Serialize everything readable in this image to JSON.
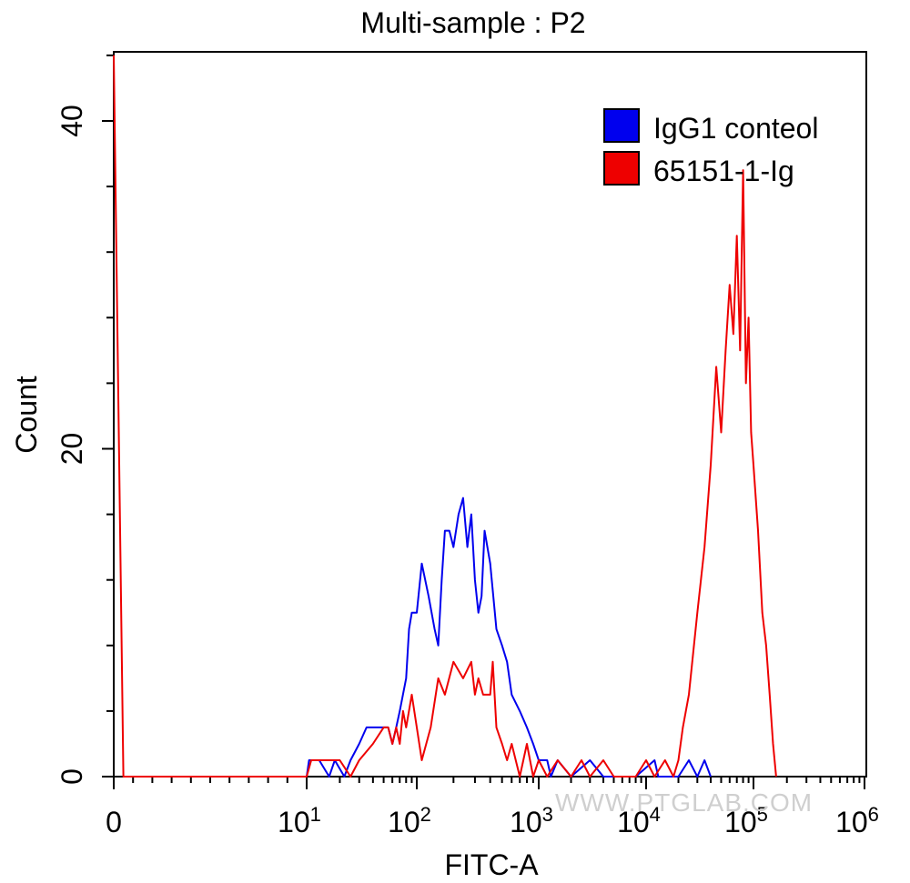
{
  "chart_data": {
    "type": "histogram",
    "title": "Multi-sample : P2",
    "xlabel": "FITC-A",
    "ylabel": "Count",
    "x_scale": "log",
    "x_tick_labels": [
      {
        "value": 0,
        "text": "0"
      },
      {
        "value": 10,
        "base": "10",
        "exp": "1"
      },
      {
        "value": 100,
        "base": "10",
        "exp": "2"
      },
      {
        "value": 1000,
        "base": "10",
        "exp": "3"
      },
      {
        "value": 10000,
        "base": "10",
        "exp": "4"
      },
      {
        "value": 100000,
        "base": "10",
        "exp": "5"
      },
      {
        "value": 1000000,
        "base": "10",
        "exp": "6"
      }
    ],
    "y_ticks": [
      0,
      20,
      40
    ],
    "ylim": [
      0,
      44
    ],
    "legend_position": "top-right",
    "watermark": "WWW.PTGLAB.COM",
    "series": [
      {
        "name": "IgG1 conteol",
        "color": "#0000ee",
        "points": [
          [
            10,
            0
          ],
          [
            10.5,
            1
          ],
          [
            13,
            1
          ],
          [
            16,
            0
          ],
          [
            18,
            1
          ],
          [
            22,
            0
          ],
          [
            25,
            1
          ],
          [
            30,
            2
          ],
          [
            35,
            3
          ],
          [
            45,
            3
          ],
          [
            55,
            3
          ],
          [
            60,
            2
          ],
          [
            65,
            3
          ],
          [
            70,
            4
          ],
          [
            80,
            6
          ],
          [
            85,
            9
          ],
          [
            90,
            10
          ],
          [
            100,
            10
          ],
          [
            110,
            13
          ],
          [
            125,
            11
          ],
          [
            140,
            9
          ],
          [
            150,
            8
          ],
          [
            160,
            12
          ],
          [
            170,
            15
          ],
          [
            185,
            15
          ],
          [
            200,
            14
          ],
          [
            220,
            16
          ],
          [
            240,
            17
          ],
          [
            260,
            14
          ],
          [
            280,
            16
          ],
          [
            300,
            12
          ],
          [
            320,
            10
          ],
          [
            340,
            11
          ],
          [
            360,
            15
          ],
          [
            400,
            13
          ],
          [
            450,
            9
          ],
          [
            500,
            8
          ],
          [
            550,
            7
          ],
          [
            600,
            5
          ],
          [
            700,
            4
          ],
          [
            800,
            3
          ],
          [
            900,
            2
          ],
          [
            1000,
            1
          ],
          [
            1200,
            1
          ],
          [
            1300,
            0
          ],
          [
            1500,
            1
          ],
          [
            2000,
            0
          ],
          [
            3000,
            1
          ],
          [
            4000,
            0
          ],
          [
            6000,
            0
          ],
          [
            8000,
            0
          ],
          [
            12000,
            1
          ],
          [
            13000,
            0
          ],
          [
            20000,
            0
          ],
          [
            25000,
            1
          ],
          [
            30000,
            0
          ],
          [
            35000,
            1
          ],
          [
            40000,
            0
          ]
        ]
      },
      {
        "name": "65151-1-Ig",
        "color": "#ee0000",
        "points": [
          [
            0,
            44
          ],
          [
            0.5,
            0
          ],
          [
            10,
            0
          ],
          [
            11,
            1
          ],
          [
            20,
            1
          ],
          [
            25,
            0
          ],
          [
            30,
            1
          ],
          [
            40,
            2
          ],
          [
            50,
            3
          ],
          [
            55,
            3
          ],
          [
            60,
            2
          ],
          [
            65,
            3
          ],
          [
            70,
            2
          ],
          [
            75,
            4
          ],
          [
            80,
            3
          ],
          [
            90,
            5
          ],
          [
            100,
            3
          ],
          [
            110,
            1
          ],
          [
            130,
            3
          ],
          [
            150,
            6
          ],
          [
            170,
            5
          ],
          [
            200,
            7
          ],
          [
            240,
            6
          ],
          [
            280,
            7
          ],
          [
            300,
            5
          ],
          [
            320,
            6
          ],
          [
            350,
            5
          ],
          [
            400,
            5
          ],
          [
            420,
            7
          ],
          [
            450,
            3
          ],
          [
            500,
            2
          ],
          [
            550,
            1
          ],
          [
            600,
            2
          ],
          [
            700,
            0
          ],
          [
            800,
            2
          ],
          [
            900,
            0
          ],
          [
            1000,
            1
          ],
          [
            1200,
            0
          ],
          [
            1500,
            1
          ],
          [
            2000,
            0
          ],
          [
            2500,
            1
          ],
          [
            3000,
            0
          ],
          [
            4000,
            1
          ],
          [
            5000,
            0
          ],
          [
            6000,
            0
          ],
          [
            8000,
            0
          ],
          [
            10000,
            1
          ],
          [
            12000,
            0
          ],
          [
            15000,
            1
          ],
          [
            18000,
            0
          ],
          [
            20000,
            1
          ],
          [
            22000,
            3
          ],
          [
            25000,
            5
          ],
          [
            30000,
            10
          ],
          [
            35000,
            14
          ],
          [
            40000,
            19
          ],
          [
            45000,
            25
          ],
          [
            50000,
            21
          ],
          [
            55000,
            26
          ],
          [
            60000,
            30
          ],
          [
            65000,
            27
          ],
          [
            70000,
            33
          ],
          [
            75000,
            26
          ],
          [
            80000,
            37
          ],
          [
            85000,
            24
          ],
          [
            90000,
            28
          ],
          [
            95000,
            21
          ],
          [
            100000,
            19
          ],
          [
            110000,
            15
          ],
          [
            120000,
            10
          ],
          [
            130000,
            8
          ],
          [
            140000,
            5
          ],
          [
            150000,
            2
          ],
          [
            160000,
            0
          ]
        ]
      }
    ]
  }
}
